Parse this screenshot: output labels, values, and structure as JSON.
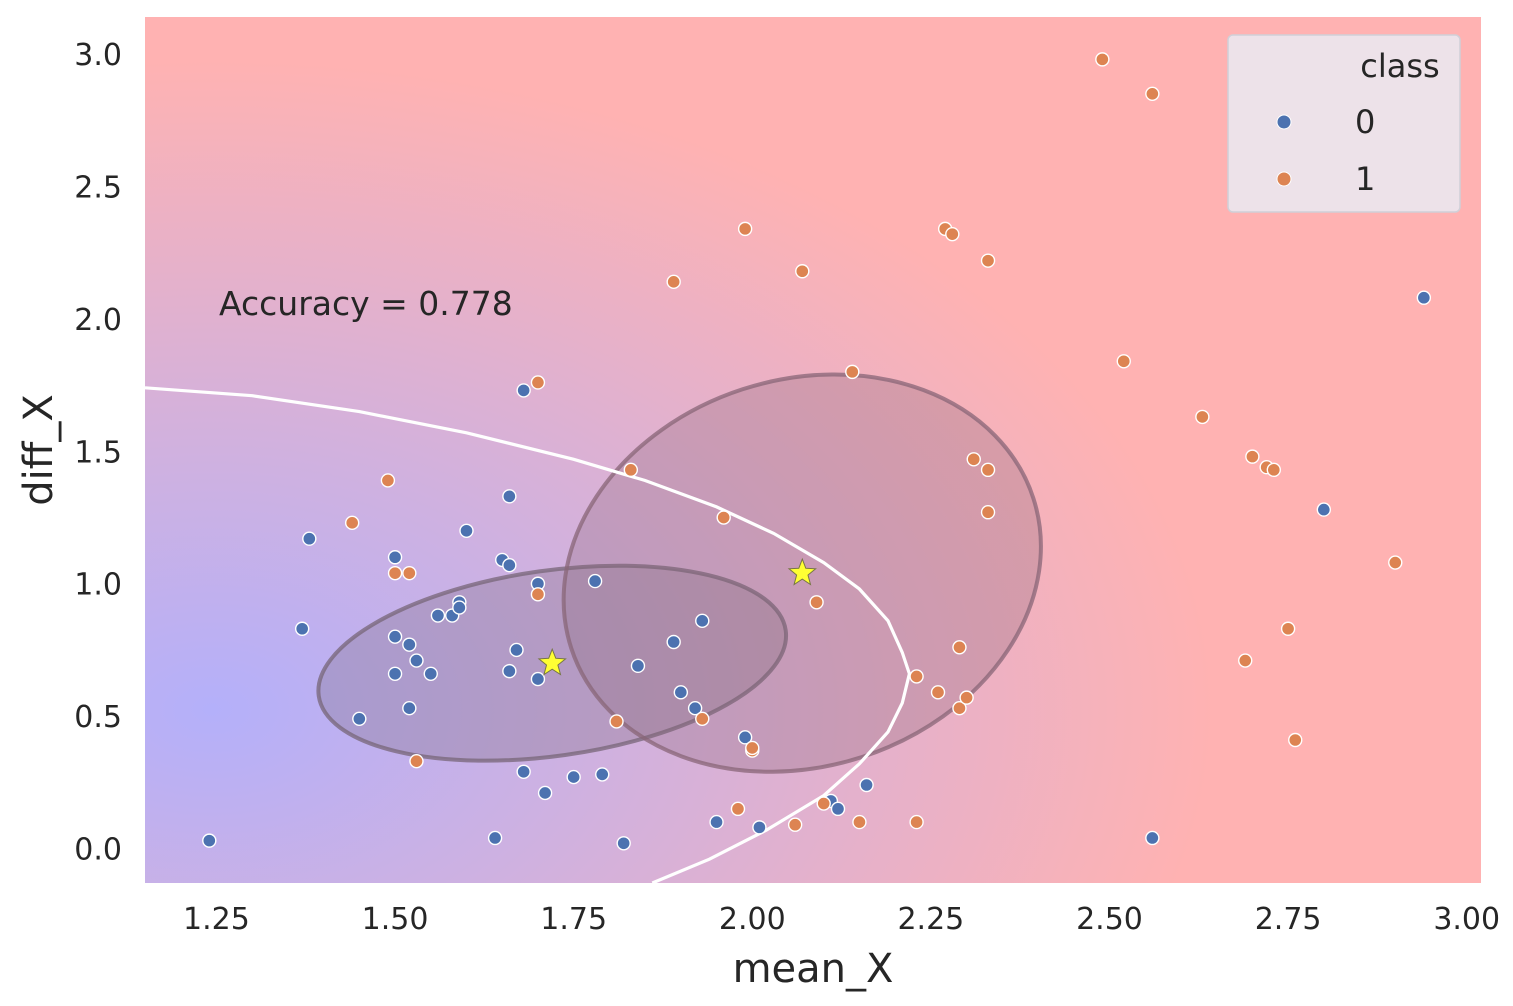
{
  "chart_data": {
    "type": "scatter",
    "title": "",
    "xlabel": "mean_X",
    "ylabel": "diff_X",
    "xlim": [
      1.15,
      3.02
    ],
    "ylim": [
      -0.13,
      3.14
    ],
    "xticks": [
      "1.25",
      "1.50",
      "1.75",
      "2.00",
      "2.25",
      "2.50",
      "2.75",
      "3.00"
    ],
    "yticks": [
      "0.0",
      "0.5",
      "1.0",
      "1.5",
      "2.0",
      "2.5",
      "3.0"
    ],
    "grid": false,
    "annotation": "Accuracy = 0.778",
    "legend": {
      "title": "class",
      "placement": "top-right",
      "entries": [
        {
          "label": "0",
          "color": "#4c72b0"
        },
        {
          "label": "1",
          "color": "#dd8452"
        }
      ]
    },
    "background": {
      "left_color": "#b4b0fa",
      "right_color": "#ffb2b2"
    },
    "series": [
      {
        "name": "0",
        "color": "#4c72b0",
        "points": [
          [
            1.24,
            0.03
          ],
          [
            1.37,
            0.83
          ],
          [
            1.38,
            1.17
          ],
          [
            1.45,
            0.49
          ],
          [
            1.5,
            1.1
          ],
          [
            1.5,
            0.8
          ],
          [
            1.5,
            0.66
          ],
          [
            1.52,
            0.77
          ],
          [
            1.53,
            0.71
          ],
          [
            1.52,
            0.53
          ],
          [
            1.55,
            0.66
          ],
          [
            1.56,
            0.88
          ],
          [
            1.58,
            0.88
          ],
          [
            1.59,
            0.93
          ],
          [
            1.59,
            0.91
          ],
          [
            1.6,
            1.2
          ],
          [
            1.64,
            0.04
          ],
          [
            1.65,
            1.09
          ],
          [
            1.66,
            1.07
          ],
          [
            1.66,
            1.33
          ],
          [
            1.66,
            0.67
          ],
          [
            1.68,
            1.73
          ],
          [
            1.67,
            0.75
          ],
          [
            1.68,
            0.29
          ],
          [
            1.7,
            1.0
          ],
          [
            1.7,
            0.64
          ],
          [
            1.71,
            0.21
          ],
          [
            1.75,
            0.27
          ],
          [
            1.78,
            1.01
          ],
          [
            1.79,
            0.28
          ],
          [
            1.82,
            0.02
          ],
          [
            1.84,
            0.69
          ],
          [
            1.89,
            0.78
          ],
          [
            1.9,
            0.59
          ],
          [
            1.92,
            0.53
          ],
          [
            1.93,
            0.86
          ],
          [
            1.95,
            0.1
          ],
          [
            1.99,
            0.42
          ],
          [
            2.01,
            0.08
          ],
          [
            2.11,
            0.18
          ],
          [
            2.12,
            0.15
          ],
          [
            2.16,
            0.24
          ],
          [
            2.56,
            0.04
          ],
          [
            2.8,
            1.28
          ],
          [
            2.94,
            2.08
          ]
        ]
      },
      {
        "name": "1",
        "color": "#dd8452",
        "points": [
          [
            1.44,
            1.23
          ],
          [
            1.49,
            1.39
          ],
          [
            1.5,
            1.04
          ],
          [
            1.52,
            1.04
          ],
          [
            1.53,
            0.33
          ],
          [
            1.7,
            1.76
          ],
          [
            1.7,
            0.96
          ],
          [
            1.81,
            0.48
          ],
          [
            1.83,
            1.43
          ],
          [
            1.89,
            2.14
          ],
          [
            1.93,
            0.49
          ],
          [
            1.96,
            1.25
          ],
          [
            1.98,
            0.15
          ],
          [
            1.99,
            2.34
          ],
          [
            2.0,
            0.37
          ],
          [
            2.0,
            0.38
          ],
          [
            2.06,
            0.09
          ],
          [
            2.07,
            2.18
          ],
          [
            2.09,
            0.93
          ],
          [
            2.1,
            0.17
          ],
          [
            2.14,
            1.8
          ],
          [
            2.15,
            0.1
          ],
          [
            2.23,
            0.65
          ],
          [
            2.23,
            0.1
          ],
          [
            2.26,
            0.59
          ],
          [
            2.27,
            2.34
          ],
          [
            2.28,
            2.32
          ],
          [
            2.29,
            0.76
          ],
          [
            2.29,
            0.53
          ],
          [
            2.3,
            0.57
          ],
          [
            2.31,
            1.47
          ],
          [
            2.33,
            1.43
          ],
          [
            2.33,
            1.27
          ],
          [
            2.33,
            2.22
          ],
          [
            2.49,
            2.98
          ],
          [
            2.52,
            1.84
          ],
          [
            2.56,
            2.85
          ],
          [
            2.63,
            1.63
          ],
          [
            2.69,
            0.71
          ],
          [
            2.7,
            1.48
          ],
          [
            2.72,
            1.44
          ],
          [
            2.73,
            1.43
          ],
          [
            2.75,
            0.83
          ],
          [
            2.76,
            0.41
          ],
          [
            2.9,
            1.08
          ]
        ]
      }
    ],
    "centroids": [
      {
        "class": "0",
        "x": 1.72,
        "y": 0.7,
        "color": "#ffff33"
      },
      {
        "class": "1",
        "x": 2.07,
        "y": 1.04,
        "color": "#ffff33"
      }
    ],
    "covariance_ellipses": [
      {
        "class": "0",
        "cx": 1.72,
        "cy": 0.7,
        "width": 0.66,
        "height": 0.7,
        "angle_deg": 8,
        "color": "#776677"
      },
      {
        "class": "1",
        "cx": 2.07,
        "cy": 1.04,
        "width": 0.68,
        "height": 1.46,
        "angle_deg": 18,
        "color": "#886677"
      }
    ],
    "decision_boundary": {
      "color": "#ffffff",
      "points": [
        [
          1.15,
          1.74
        ],
        [
          1.3,
          1.71
        ],
        [
          1.45,
          1.65
        ],
        [
          1.6,
          1.57
        ],
        [
          1.75,
          1.47
        ],
        [
          1.85,
          1.39
        ],
        [
          1.95,
          1.29
        ],
        [
          2.03,
          1.19
        ],
        [
          2.1,
          1.08
        ],
        [
          2.15,
          0.98
        ],
        [
          2.19,
          0.86
        ],
        [
          2.21,
          0.74
        ],
        [
          2.22,
          0.66
        ],
        [
          2.21,
          0.55
        ],
        [
          2.19,
          0.44
        ],
        [
          2.15,
          0.32
        ],
        [
          2.1,
          0.2
        ],
        [
          2.02,
          0.07
        ],
        [
          1.94,
          -0.04
        ],
        [
          1.86,
          -0.13
        ]
      ]
    }
  }
}
